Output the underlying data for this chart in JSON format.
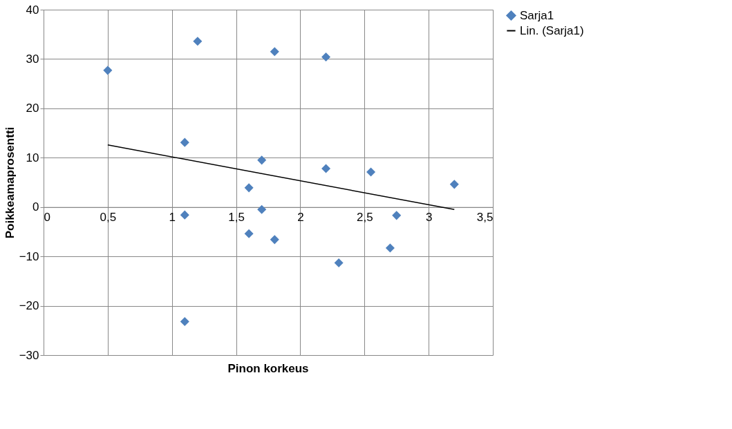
{
  "chart_data": {
    "type": "scatter",
    "xlabel": "Pinon korkeus",
    "ylabel": "Poikkeamaprosentti",
    "xlim": [
      0,
      3.5
    ],
    "ylim": [
      -30,
      40
    ],
    "xticks": [
      0,
      {
        "value": 0.5,
        "label": "0,5"
      },
      1,
      {
        "value": 1.5,
        "label": "1,5"
      },
      2,
      {
        "value": 2.5,
        "label": "2,5"
      },
      3,
      {
        "value": 3.5,
        "label": "3,5"
      }
    ],
    "yticks": [
      -30,
      -20,
      -10,
      0,
      10,
      20,
      30,
      40
    ],
    "grid": true,
    "legend": "right",
    "marker": "diamond",
    "series": [
      {
        "name": "Sarja1",
        "color": "#4f81bd",
        "x": [
          0.5,
          1.2,
          1.8,
          2.2,
          1.1,
          1.7,
          2.2,
          2.55,
          3.2,
          1.6,
          1.7,
          1.1,
          2.75,
          1.6,
          1.8,
          2.7,
          2.3,
          1.1
        ],
        "values": [
          27.7,
          33.6,
          31.5,
          30.4,
          13.1,
          9.5,
          7.8,
          7.1,
          4.6,
          3.9,
          -0.5,
          -1.6,
          -1.7,
          -5.4,
          -6.6,
          -8.3,
          -11.3,
          -23.2
        ]
      },
      {
        "name": "Lin. (Sarja1)",
        "type": "line",
        "marker": "none",
        "color": "#000000",
        "x": [
          0.5,
          3.2
        ],
        "values": [
          12.6,
          -0.5
        ]
      }
    ]
  }
}
